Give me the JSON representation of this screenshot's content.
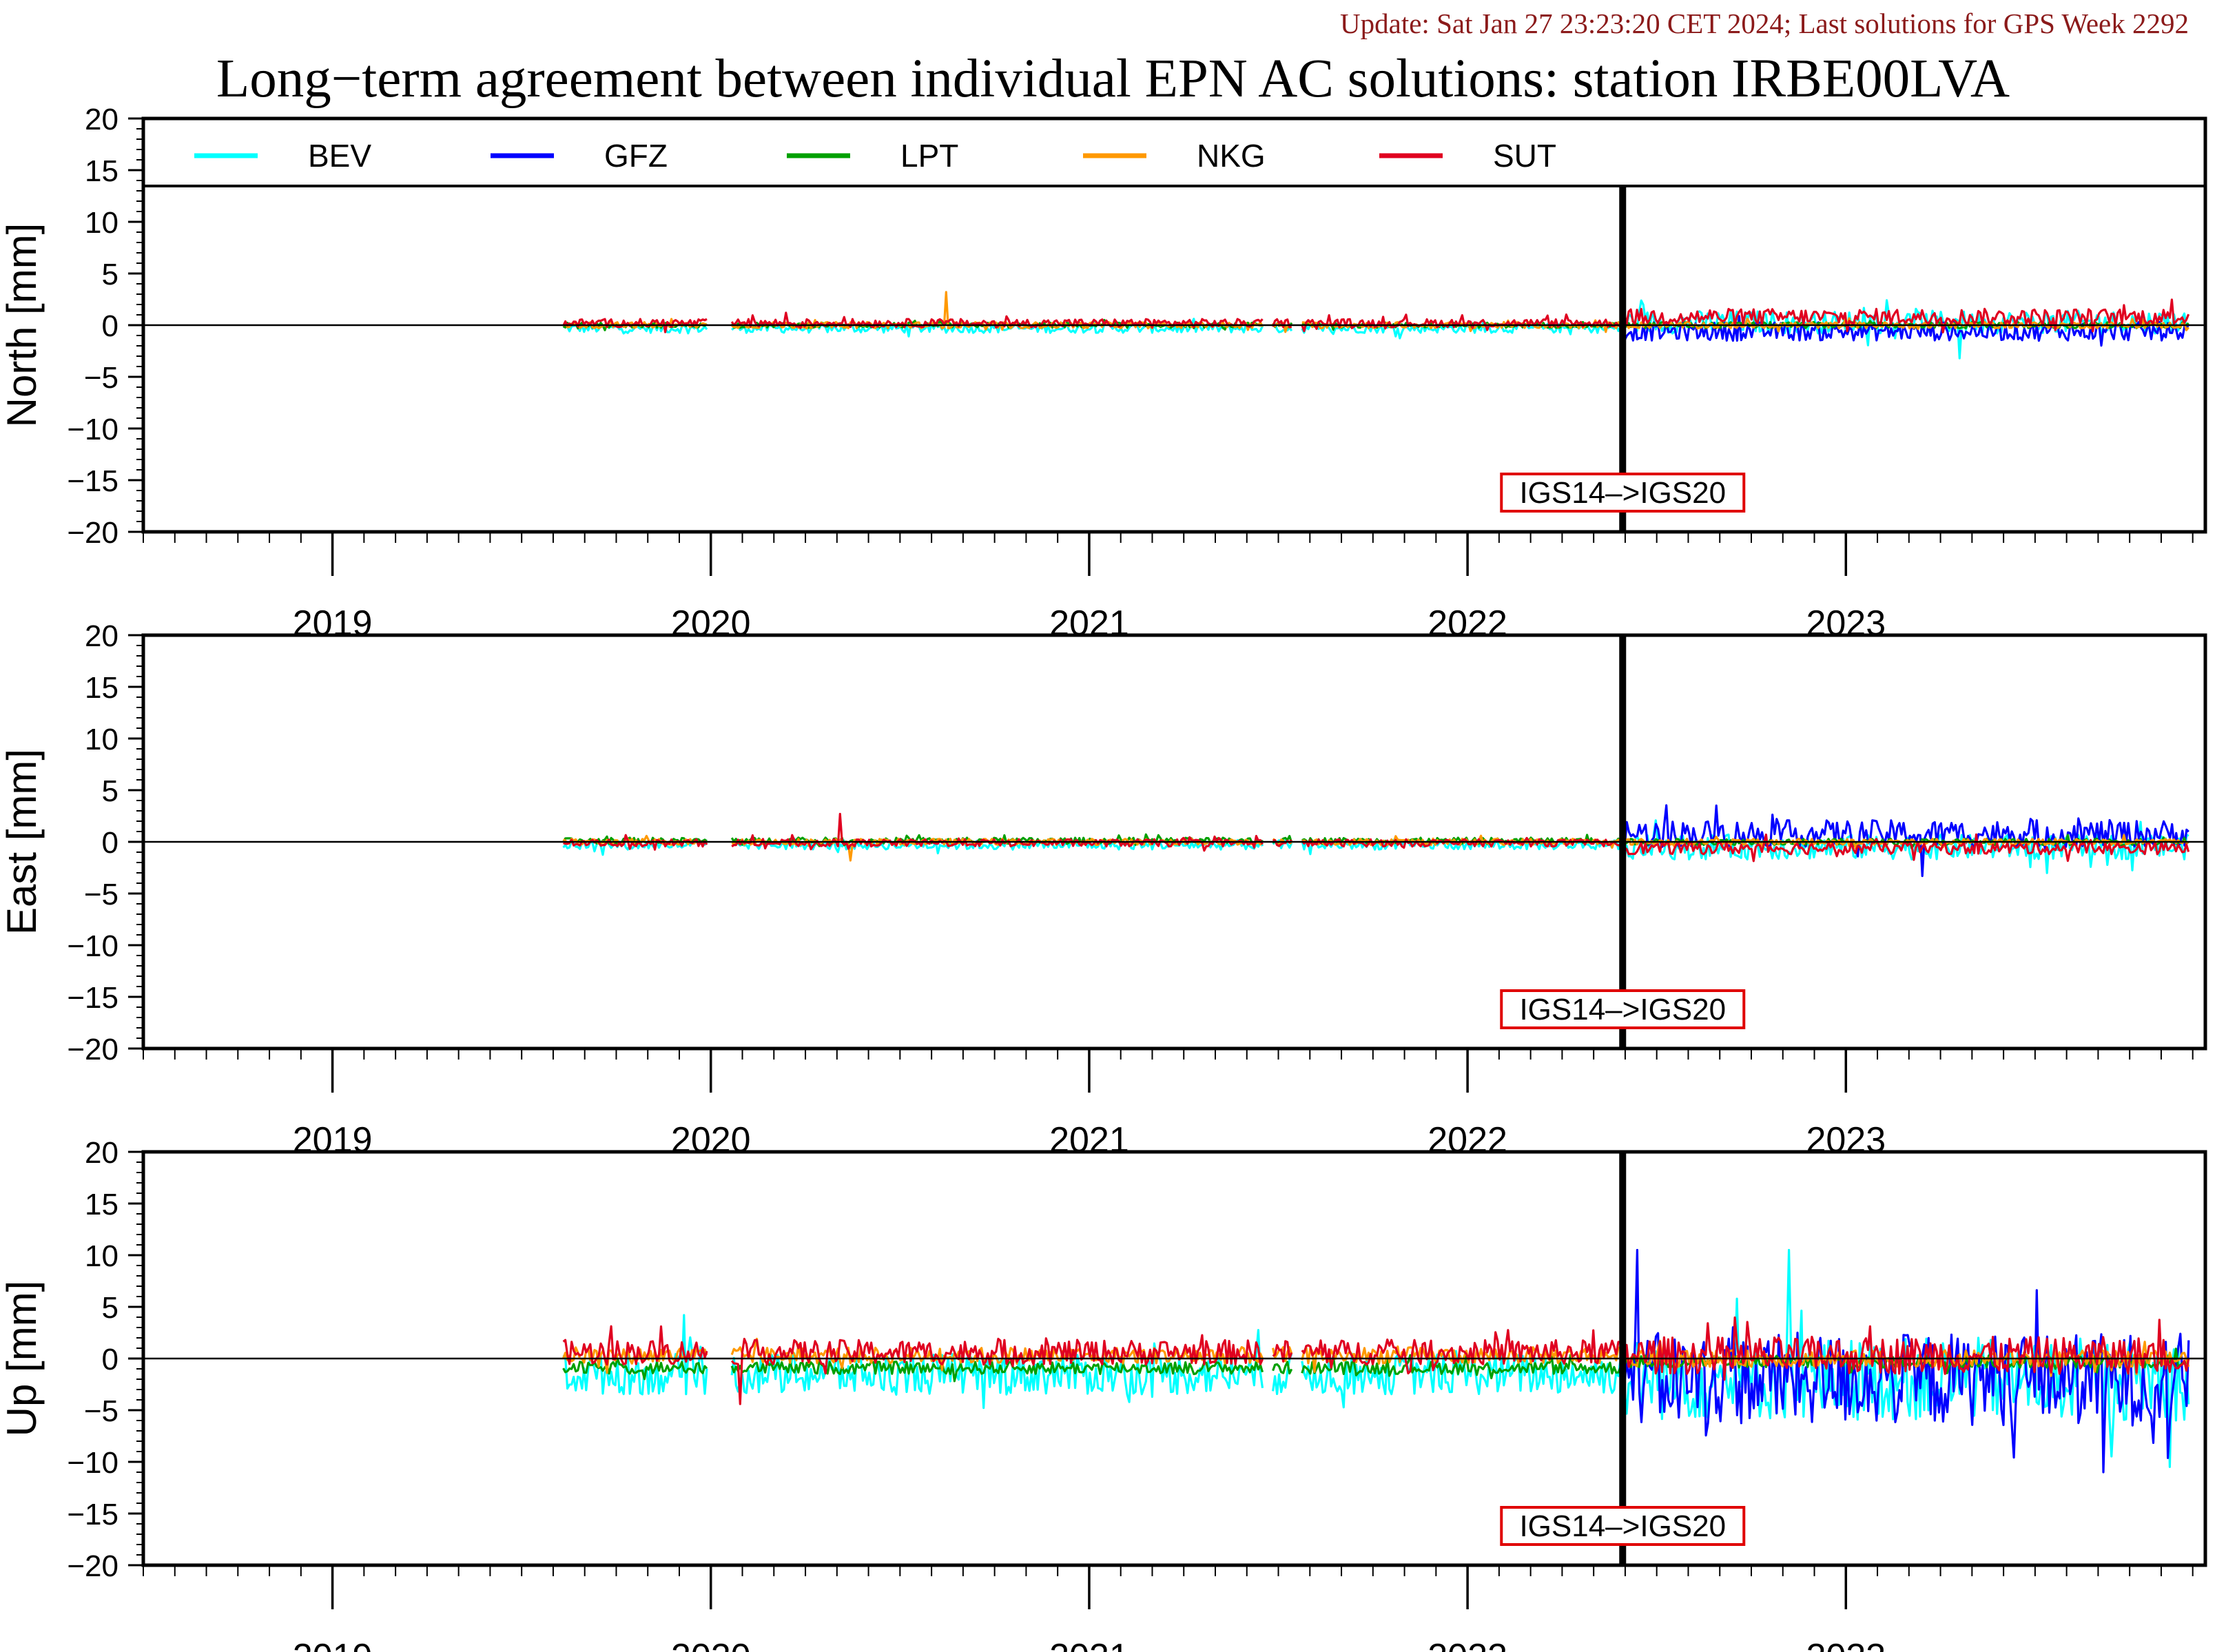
{
  "header": {
    "update": "Update: Sat Jan 27 23:23:20 CET 2024; Last solutions for GPS Week 2292",
    "title": "Long−term agreement between individual EPN AC solutions: station IRBE00LVA"
  },
  "colors": {
    "BEV": "#00ffff",
    "GFZ": "#0000ff",
    "LPT": "#00a000",
    "NKG": "#ff9900",
    "SUT": "#e00020",
    "annotation_box": "#e00000",
    "update_text": "#8b1a1a"
  },
  "chart_data": {
    "type": "line",
    "series_names": [
      "BEV",
      "GFZ",
      "LPT",
      "NKG",
      "SUT"
    ],
    "x_range": [
      2018.5,
      2023.95
    ],
    "year_labels": [
      "2019",
      "2020",
      "2021",
      "2022",
      "2023"
    ],
    "y_ticks": [
      "20",
      "15",
      "10",
      "5",
      "0",
      "−5",
      "−10",
      "−15",
      "−20"
    ],
    "ylim": [
      -20,
      20
    ],
    "frame_change": {
      "label": "IGS14–>IGS20",
      "x": 2022.41
    },
    "data_start": 2019.61,
    "data_end": 2023.91,
    "legend": {
      "placement": "top",
      "entries": [
        "BEV",
        "GFZ",
        "LPT",
        "NKG",
        "SUT"
      ]
    },
    "panels": [
      {
        "ylabel": "North [mm]",
        "amplitude_before_change": {
          "BEV": 0.45,
          "GFZ": 0,
          "LPT": 0.25,
          "NKG": 0.3,
          "SUT": 0.4
        },
        "amplitude_after_change": {
          "BEV": 1.1,
          "GFZ": 0.9,
          "LPT": 0.3,
          "NKG": 0.3,
          "SUT": 0.8
        },
        "offset_before_change": {
          "BEV": -0.3,
          "GFZ": 0,
          "LPT": 0,
          "NKG": 0,
          "SUT": 0.2
        },
        "offset_after_change": {
          "BEV": 0.3,
          "GFZ": -0.6,
          "LPT": 0,
          "NKG": 0,
          "SUT": 0.8
        },
        "spikes": [
          {
            "series": "NKG",
            "x": 2020.62,
            "y": 3.2
          },
          {
            "series": "SUT",
            "x": 2020.2,
            "y": 1.2
          },
          {
            "series": "BEV",
            "x": 2023.3,
            "y": -3.2
          }
        ]
      },
      {
        "ylabel": "East [mm]",
        "amplitude_before_change": {
          "BEV": 0.45,
          "GFZ": 0,
          "LPT": 0.3,
          "NKG": 0.3,
          "SUT": 0.35
        },
        "amplitude_after_change": {
          "BEV": 1.2,
          "GFZ": 1.3,
          "LPT": 0.3,
          "NKG": 0.3,
          "SUT": 0.6
        },
        "offset_before_change": {
          "BEV": -0.3,
          "GFZ": 0,
          "LPT": 0.1,
          "NKG": 0,
          "SUT": -0.1
        },
        "offset_after_change": {
          "BEV": -0.5,
          "GFZ": 0.8,
          "LPT": 0,
          "NKG": 0,
          "SUT": -0.6
        },
        "spikes": [
          {
            "series": "SUT",
            "x": 2020.34,
            "y": 2.7
          },
          {
            "series": "NKG",
            "x": 2020.37,
            "y": -1.8
          },
          {
            "series": "GFZ",
            "x": 2023.2,
            "y": -3.3
          }
        ]
      },
      {
        "ylabel": "Up [mm]",
        "amplitude_before_change": {
          "BEV": 2.0,
          "GFZ": 0,
          "LPT": 0.6,
          "NKG": 0.8,
          "SUT": 1.2
        },
        "amplitude_after_change": {
          "BEV": 4.0,
          "GFZ": 4.5,
          "LPT": 0.6,
          "NKG": 0.8,
          "SUT": 1.8
        },
        "offset_before_change": {
          "BEV": -1.5,
          "GFZ": 0,
          "LPT": -0.9,
          "NKG": 0.3,
          "SUT": 0.6
        },
        "offset_after_change": {
          "BEV": -2.0,
          "GFZ": -2.0,
          "LPT": -0.3,
          "NKG": 0,
          "SUT": 0.3
        },
        "spikes": [
          {
            "series": "GFZ",
            "x": 2022.45,
            "y": 10.5
          },
          {
            "series": "BEV",
            "x": 2022.85,
            "y": 10.5
          },
          {
            "series": "GFZ",
            "x": 2023.68,
            "y": -11.0
          },
          {
            "series": "BEV",
            "x": 2019.93,
            "y": 4.2
          },
          {
            "series": "SUT",
            "x": 2020.08,
            "y": -4.4
          }
        ]
      }
    ]
  }
}
